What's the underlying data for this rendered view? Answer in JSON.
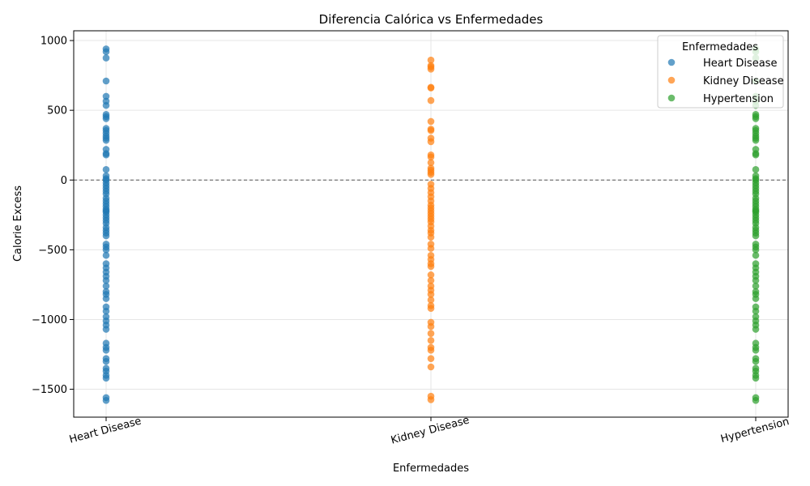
{
  "chart_data": {
    "type": "scatter",
    "title": "Diferencia Calórica vs Enfermedades",
    "xlabel": "Enfermedades",
    "ylabel": "Calorie Excess",
    "categories": [
      "Heart Disease",
      "Kidney Disease",
      "Hypertension"
    ],
    "ylim": [
      -1700,
      1070
    ],
    "yticks": [
      -1500,
      -1000,
      -500,
      0,
      500,
      1000
    ],
    "reference_line": 0,
    "grid": true,
    "legend": {
      "title": "Enfermedades",
      "placement": "top-right"
    },
    "series": [
      {
        "name": "Heart Disease",
        "color": "#1f77b4",
        "category": "Heart Disease",
        "values": [
          940,
          920,
          875,
          710,
          600,
          565,
          535,
          470,
          455,
          440,
          370,
          355,
          335,
          315,
          300,
          285,
          220,
          190,
          180,
          75,
          30,
          10,
          0,
          -20,
          -40,
          -60,
          -80,
          -100,
          -130,
          -150,
          -170,
          -190,
          -210,
          -220,
          -230,
          -250,
          -270,
          -290,
          -310,
          -340,
          -360,
          -380,
          -400,
          -460,
          -480,
          -500,
          -540,
          -600,
          -630,
          -660,
          -690,
          -720,
          -760,
          -800,
          -820,
          -850,
          -910,
          -940,
          -980,
          -1010,
          -1040,
          -1070,
          -1170,
          -1200,
          -1220,
          -1280,
          -1300,
          -1350,
          -1370,
          -1400,
          -1420,
          -1560,
          -1580
        ]
      },
      {
        "name": "Kidney Disease",
        "color": "#ff7f0e",
        "category": "Kidney Disease",
        "values": [
          860,
          820,
          810,
          795,
          665,
          660,
          570,
          420,
          365,
          355,
          300,
          275,
          180,
          165,
          125,
          85,
          70,
          55,
          40,
          -30,
          -60,
          -90,
          -120,
          -150,
          -180,
          -200,
          -220,
          -240,
          -260,
          -280,
          -300,
          -330,
          -360,
          -380,
          -410,
          -460,
          -490,
          -540,
          -570,
          -600,
          -620,
          -680,
          -720,
          -760,
          -790,
          -820,
          -860,
          -900,
          -920,
          -1020,
          -1050,
          -1100,
          -1150,
          -1200,
          -1220,
          -1280,
          -1340,
          -1550,
          -1575
        ]
      },
      {
        "name": "Hypertension",
        "color": "#2ca02c",
        "category": "Hypertension",
        "values": [
          940,
          920,
          875,
          710,
          600,
          565,
          535,
          470,
          455,
          440,
          370,
          355,
          335,
          315,
          300,
          285,
          220,
          190,
          180,
          75,
          30,
          10,
          0,
          -20,
          -40,
          -60,
          -80,
          -100,
          -130,
          -150,
          -170,
          -190,
          -210,
          -220,
          -230,
          -250,
          -270,
          -290,
          -310,
          -340,
          -360,
          -380,
          -400,
          -460,
          -480,
          -500,
          -540,
          -600,
          -630,
          -660,
          -690,
          -720,
          -760,
          -800,
          -820,
          -850,
          -910,
          -940,
          -980,
          -1010,
          -1040,
          -1070,
          -1170,
          -1200,
          -1220,
          -1280,
          -1300,
          -1350,
          -1370,
          -1400,
          -1420,
          -1560,
          -1580
        ]
      }
    ]
  }
}
